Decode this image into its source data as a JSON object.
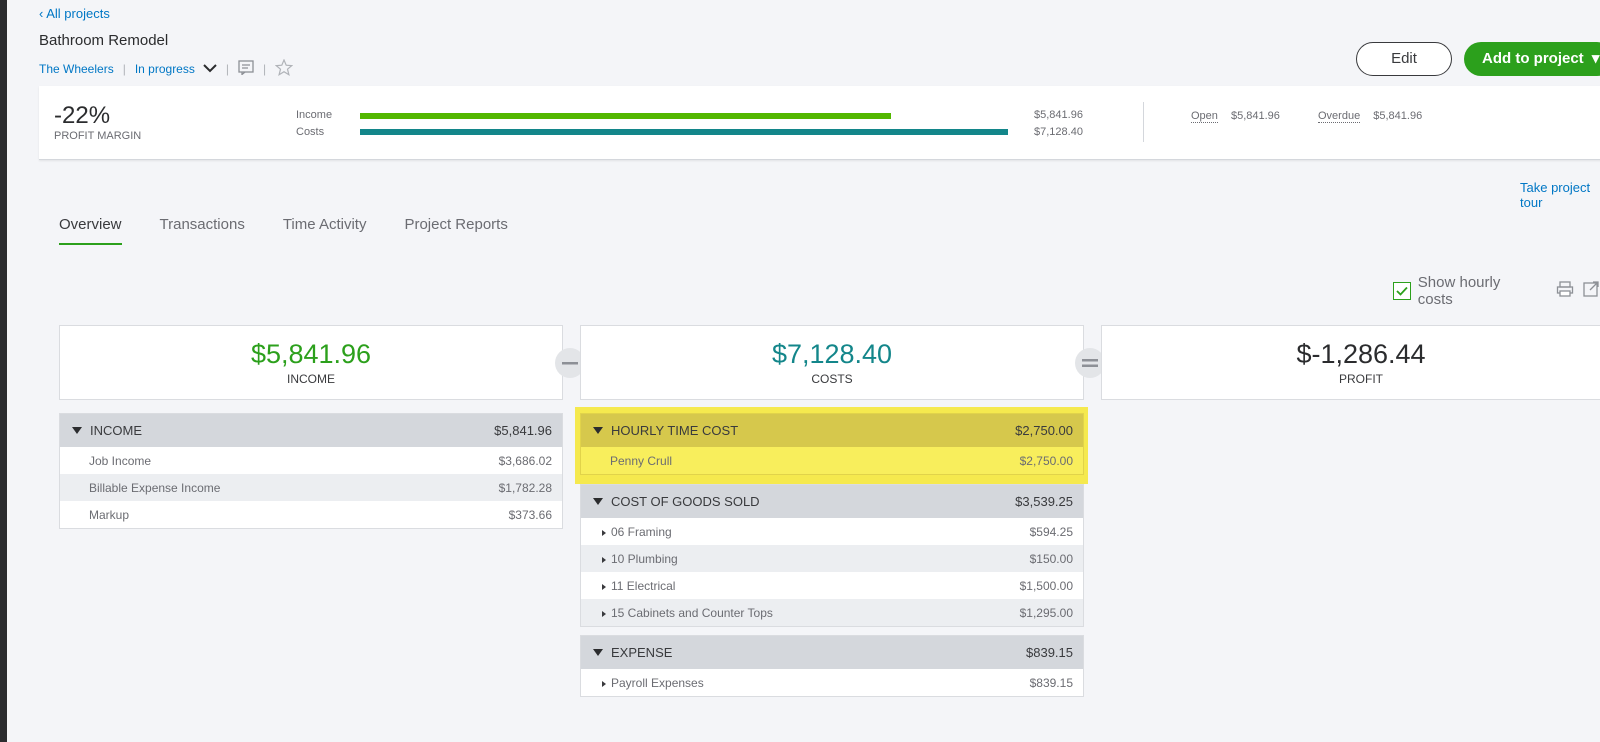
{
  "nav": {
    "back_label": "All projects"
  },
  "project": {
    "title": "Bathroom Remodel",
    "customer": "The Wheelers",
    "status": "In progress"
  },
  "actions": {
    "edit_label": "Edit",
    "add_label": "Add to project"
  },
  "summary": {
    "profit_margin_value": "-22%",
    "profit_margin_label": "PROFIT MARGIN",
    "income_label": "Income",
    "income_amount": "$5,841.96",
    "costs_label": "Costs",
    "costs_amount": "$7,128.40",
    "open_label": "Open",
    "open_amount": "$5,841.96",
    "overdue_label": "Overdue",
    "overdue_amount": "$5,841.96",
    "income_color": "#53b700",
    "costs_color": "#13868a"
  },
  "take_project_label": "Take project tour",
  "tabs": [
    {
      "label": "Overview"
    },
    {
      "label": "Transactions"
    },
    {
      "label": "Time Activity"
    },
    {
      "label": "Project Reports"
    }
  ],
  "options": {
    "show_hourly_costs_label": "Show hourly costs"
  },
  "cards": {
    "income": {
      "amount": "$5,841.96",
      "label": "INCOME",
      "color": "#2ca01c"
    },
    "costs": {
      "amount": "$7,128.40",
      "label": "COSTS",
      "color": "#13868a"
    },
    "profit": {
      "amount": "$-1,286.44",
      "label": "PROFIT",
      "color": "#2b2c2e"
    }
  },
  "income_table": {
    "header": "INCOME",
    "total": "$5,841.96",
    "rows": [
      {
        "name": "Job Income",
        "amount": "$3,686.02"
      },
      {
        "name": "Billable Expense Income",
        "amount": "$1,782.28"
      },
      {
        "name": "Markup",
        "amount": "$373.66"
      }
    ]
  },
  "hourly_table": {
    "header": "HOURLY TIME COST",
    "total": "$2,750.00",
    "rows": [
      {
        "name": "Penny Crull",
        "amount": "$2,750.00"
      }
    ]
  },
  "cogs_table": {
    "header": "COST OF GOODS SOLD",
    "total": "$3,539.25",
    "rows": [
      {
        "name": "06 Framing",
        "amount": "$594.25"
      },
      {
        "name": "10 Plumbing",
        "amount": "$150.00"
      },
      {
        "name": "11 Electrical",
        "amount": "$1,500.00"
      },
      {
        "name": "15 Cabinets and Counter Tops",
        "amount": "$1,295.00"
      }
    ]
  },
  "expense_table": {
    "header": "EXPENSE",
    "total": "$839.15",
    "rows": [
      {
        "name": "Payroll Expenses",
        "amount": "$839.15"
      }
    ]
  }
}
